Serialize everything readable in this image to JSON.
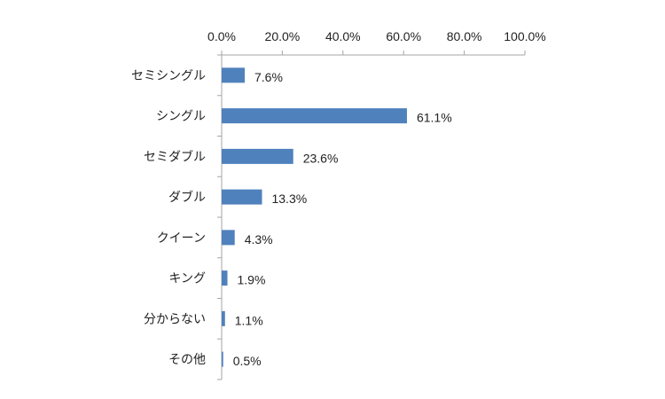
{
  "chart_data": {
    "type": "bar",
    "orientation": "horizontal",
    "categories": [
      "セミシングル",
      "シングル",
      "セミダブル",
      "ダブル",
      "クイーン",
      "キング",
      "分からない",
      "その他"
    ],
    "values": [
      7.6,
      61.1,
      23.6,
      13.3,
      4.3,
      1.9,
      1.1,
      0.5
    ],
    "data_labels": [
      "7.6%",
      "61.1%",
      "23.6%",
      "13.3%",
      "4.3%",
      "1.9%",
      "1.1%",
      "0.5%"
    ],
    "x_ticks": [
      "0.0%",
      "20.0%",
      "40.0%",
      "60.0%",
      "80.0%",
      "100.0%"
    ],
    "xlim": [
      0,
      100
    ],
    "x_axis_position": "top",
    "grid": false,
    "legend": "none",
    "bar_color": "#4f81bd",
    "axis_color": "#a6a6a6"
  }
}
